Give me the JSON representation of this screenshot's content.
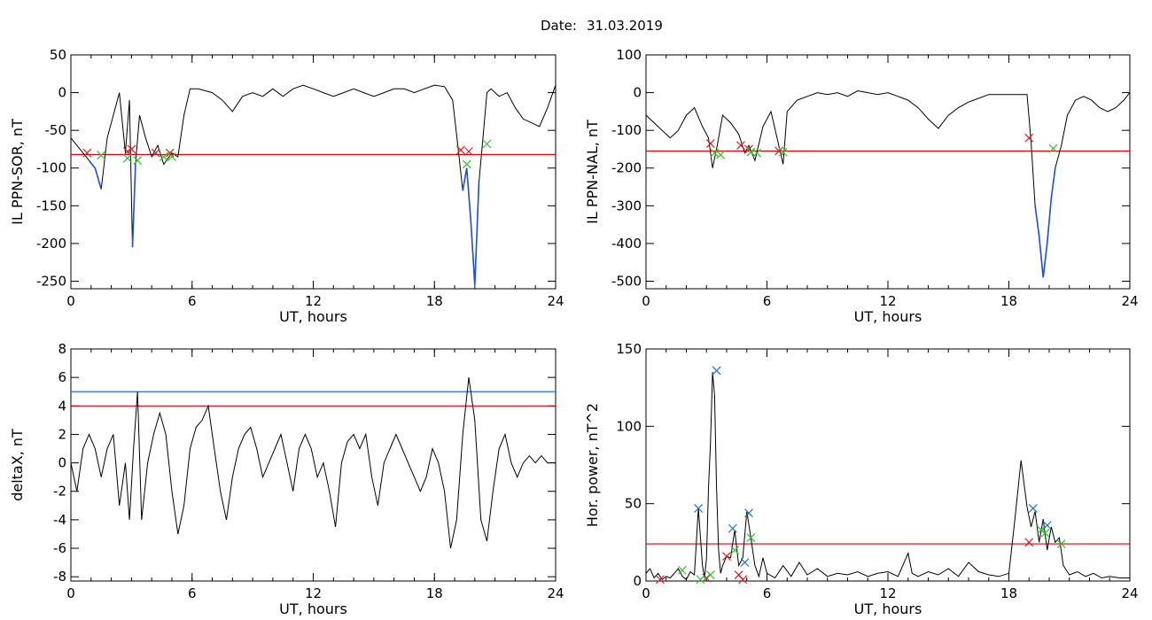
{
  "header": {
    "date_label": "Date:",
    "date_value": "31.03.2019"
  },
  "chart_data": [
    {
      "type": "line",
      "ylabel": "IL PPN-SOR, nT",
      "xlabel": "UT, hours",
      "xlim": [
        0,
        24
      ],
      "ylim": [
        -260,
        50
      ],
      "xticks": [
        0,
        6,
        12,
        18,
        24
      ],
      "yticks": [
        50,
        0,
        -50,
        -100,
        -150,
        -200,
        -250
      ],
      "threshold": -82,
      "threshold_color": "#e00000",
      "trace_color": "#000000",
      "below_color": "#1f4fd8",
      "x": [
        0,
        0.3,
        0.6,
        0.9,
        1.2,
        1.5,
        1.8,
        2.1,
        2.4,
        2.7,
        2.9,
        3.05,
        3.2,
        3.4,
        3.7,
        4.0,
        4.3,
        4.6,
        5.0,
        5.3,
        5.6,
        5.9,
        6.3,
        7.0,
        7.5,
        8.0,
        8.5,
        9.0,
        9.5,
        10.0,
        10.5,
        11.0,
        11.5,
        12.0,
        12.5,
        13.0,
        13.5,
        14.0,
        14.5,
        15.0,
        15.5,
        16.0,
        16.5,
        17.0,
        17.5,
        18.0,
        18.5,
        18.9,
        19.2,
        19.4,
        19.6,
        19.8,
        20.0,
        20.2,
        20.4,
        20.6,
        20.8,
        21.2,
        21.6,
        22.0,
        22.4,
        22.8,
        23.2,
        23.6,
        24.0
      ],
      "y": [
        -60,
        -70,
        -80,
        -90,
        -100,
        -128,
        -60,
        -30,
        0,
        -80,
        -10,
        -205,
        -95,
        -30,
        -60,
        -85,
        -70,
        -95,
        -80,
        -85,
        -30,
        5,
        5,
        0,
        -10,
        -25,
        -5,
        0,
        -5,
        5,
        -5,
        5,
        10,
        5,
        0,
        -5,
        0,
        5,
        0,
        -5,
        0,
        5,
        5,
        0,
        5,
        10,
        8,
        -10,
        -80,
        -130,
        -100,
        -170,
        -255,
        -120,
        -60,
        0,
        5,
        -5,
        0,
        -20,
        -35,
        -40,
        -45,
        -20,
        10
      ],
      "points_red": [
        [
          0.8,
          -80
        ],
        [
          2.8,
          -78
        ],
        [
          3.0,
          -75
        ],
        [
          4.2,
          -80
        ],
        [
          4.9,
          -80
        ],
        [
          19.3,
          -76
        ],
        [
          19.7,
          -78
        ]
      ],
      "points_green": [
        [
          1.5,
          -83
        ],
        [
          2.8,
          -87
        ],
        [
          3.3,
          -90
        ],
        [
          4.6,
          -85
        ],
        [
          5.0,
          -85
        ],
        [
          19.6,
          -95
        ],
        [
          20.6,
          -68
        ]
      ]
    },
    {
      "type": "line",
      "ylabel": "IL PPN-NAL, nT",
      "xlabel": "UT, hours",
      "xlim": [
        0,
        24
      ],
      "ylim": [
        -520,
        100
      ],
      "xticks": [
        0,
        6,
        12,
        18,
        24
      ],
      "yticks": [
        100,
        0,
        -100,
        -200,
        -300,
        -400,
        -500
      ],
      "threshold": -155,
      "threshold_color": "#e00000",
      "trace_color": "#000000",
      "below_color": "#1f4fd8",
      "x": [
        0,
        0.4,
        0.8,
        1.2,
        1.6,
        2.0,
        2.4,
        2.8,
        3.1,
        3.3,
        3.5,
        3.8,
        4.2,
        4.6,
        4.9,
        5.1,
        5.4,
        5.8,
        6.2,
        6.5,
        6.8,
        7.0,
        7.5,
        8.0,
        8.5,
        9.0,
        9.5,
        10.0,
        10.5,
        11.0,
        11.5,
        12.0,
        12.5,
        13.0,
        13.5,
        14.0,
        14.5,
        15.0,
        15.5,
        16.0,
        16.5,
        17.0,
        17.5,
        18.0,
        18.5,
        18.9,
        19.1,
        19.3,
        19.5,
        19.7,
        19.9,
        20.1,
        20.3,
        20.6,
        20.9,
        21.3,
        21.7,
        22.1,
        22.5,
        22.9,
        23.3,
        23.7,
        24.0
      ],
      "y": [
        -60,
        -80,
        -100,
        -120,
        -100,
        -60,
        -40,
        -90,
        -120,
        -200,
        -150,
        -60,
        -80,
        -110,
        -160,
        -140,
        -180,
        -90,
        -50,
        -120,
        -190,
        -50,
        -20,
        -10,
        0,
        -5,
        0,
        -10,
        5,
        0,
        -5,
        0,
        -10,
        -20,
        -40,
        -70,
        -95,
        -60,
        -40,
        -25,
        -15,
        -5,
        -5,
        -5,
        -5,
        -5,
        -130,
        -300,
        -380,
        -490,
        -400,
        -280,
        -200,
        -140,
        -60,
        -20,
        -10,
        -20,
        -40,
        -50,
        -40,
        -20,
        0
      ],
      "points_red": [
        [
          3.2,
          -135
        ],
        [
          4.7,
          -140
        ],
        [
          5.1,
          -150
        ],
        [
          6.6,
          -155
        ],
        [
          19.0,
          -120
        ]
      ],
      "points_green": [
        [
          3.4,
          -160
        ],
        [
          3.7,
          -165
        ],
        [
          5.2,
          -158
        ],
        [
          5.5,
          -160
        ],
        [
          6.8,
          -158
        ],
        [
          20.2,
          -148
        ]
      ]
    },
    {
      "type": "line",
      "ylabel": "deltaX, nT",
      "xlabel": "UT, hours",
      "xlim": [
        0,
        24
      ],
      "ylim": [
        -8.3,
        8
      ],
      "xticks": [
        0,
        6,
        12,
        18,
        24
      ],
      "yticks": [
        8,
        6,
        4,
        2,
        0,
        -2,
        -4,
        -6,
        -8
      ],
      "thresholds": [
        {
          "value": 5,
          "color": "#1f6fd0"
        },
        {
          "value": 4,
          "color": "#e00000"
        }
      ],
      "trace_color": "#000000",
      "x": [
        0,
        0.3,
        0.6,
        0.9,
        1.2,
        1.5,
        1.8,
        2.1,
        2.4,
        2.7,
        2.9,
        3.1,
        3.3,
        3.5,
        3.8,
        4.1,
        4.4,
        4.7,
        5.0,
        5.3,
        5.6,
        5.9,
        6.2,
        6.5,
        6.8,
        7.1,
        7.4,
        7.7,
        8.0,
        8.3,
        8.6,
        8.9,
        9.2,
        9.5,
        9.8,
        10.1,
        10.4,
        10.7,
        11.0,
        11.3,
        11.6,
        11.9,
        12.2,
        12.5,
        12.8,
        13.1,
        13.4,
        13.7,
        14.0,
        14.3,
        14.6,
        14.9,
        15.2,
        15.5,
        15.8,
        16.1,
        16.4,
        16.7,
        17.0,
        17.3,
        17.6,
        17.9,
        18.2,
        18.5,
        18.8,
        19.1,
        19.4,
        19.7,
        20.0,
        20.3,
        20.6,
        20.9,
        21.2,
        21.5,
        21.8,
        22.1,
        22.4,
        22.7,
        23.0,
        23.3,
        23.6,
        24.0
      ],
      "y": [
        0,
        -2,
        1,
        2,
        1,
        -1,
        1,
        2,
        -3,
        0,
        -4,
        1,
        5,
        -4,
        0,
        2,
        3.5,
        2,
        -2,
        -5,
        -3,
        1,
        2.5,
        3,
        4,
        1,
        -2,
        -4,
        -1,
        1,
        2,
        2.5,
        1,
        -1,
        0,
        1,
        2,
        0,
        -2,
        1,
        2,
        1,
        -1,
        0,
        -2,
        -4.5,
        0,
        1.5,
        2,
        1,
        2,
        -1,
        -3,
        0,
        1,
        2,
        1,
        0,
        -1,
        -2,
        -1,
        1,
        0,
        -2,
        -6,
        -4,
        2,
        6,
        3,
        -4,
        -5.5,
        -2,
        1,
        2,
        0,
        -1,
        0,
        0.5,
        0,
        0.5,
        0,
        0
      ]
    },
    {
      "type": "line",
      "ylabel": "Hor. power, nT^2",
      "xlabel": "UT, hours",
      "xlim": [
        0,
        24
      ],
      "ylim": [
        0,
        150
      ],
      "xticks": [
        0,
        6,
        12,
        18,
        24
      ],
      "yticks": [
        150,
        100,
        50,
        0
      ],
      "threshold": 24,
      "threshold_color": "#e00000",
      "trace_color": "#000000",
      "x": [
        0,
        0.2,
        0.4,
        0.6,
        0.8,
        1.0,
        1.2,
        1.4,
        1.6,
        1.8,
        2.0,
        2.2,
        2.4,
        2.6,
        2.8,
        2.9,
        3.0,
        3.1,
        3.2,
        3.3,
        3.4,
        3.5,
        3.6,
        3.7,
        3.8,
        4.0,
        4.2,
        4.4,
        4.6,
        4.8,
        5.0,
        5.2,
        5.4,
        5.6,
        5.8,
        6.0,
        6.4,
        6.8,
        7.2,
        7.6,
        8.0,
        8.5,
        9.0,
        9.5,
        10.0,
        10.5,
        11.0,
        11.5,
        12.0,
        12.5,
        13.0,
        13.2,
        13.5,
        14.0,
        14.5,
        15.0,
        15.5,
        16.0,
        16.5,
        17.0,
        17.5,
        18.0,
        18.3,
        18.6,
        18.9,
        19.1,
        19.3,
        19.5,
        19.7,
        19.9,
        20.1,
        20.3,
        20.5,
        20.7,
        21.0,
        21.4,
        21.8,
        22.2,
        22.6,
        23.0,
        23.5,
        24.0
      ],
      "y": [
        5,
        8,
        2,
        5,
        1,
        3,
        2,
        5,
        8,
        3,
        1,
        6,
        4,
        47,
        10,
        2,
        15,
        60,
        90,
        135,
        120,
        60,
        20,
        5,
        10,
        16,
        15,
        33,
        10,
        15,
        45,
        28,
        10,
        3,
        15,
        5,
        2,
        10,
        3,
        12,
        4,
        8,
        3,
        5,
        4,
        6,
        3,
        5,
        6,
        3,
        18,
        5,
        3,
        6,
        4,
        8,
        3,
        12,
        6,
        4,
        3,
        5,
        40,
        78,
        48,
        35,
        45,
        25,
        40,
        20,
        35,
        25,
        28,
        10,
        4,
        6,
        3,
        5,
        2,
        3,
        2,
        2
      ],
      "points_blue": [
        [
          2.6,
          47
        ],
        [
          3.5,
          136
        ],
        [
          4.3,
          34
        ],
        [
          4.9,
          12
        ],
        [
          5.1,
          44
        ],
        [
          19.2,
          47
        ],
        [
          19.9,
          36
        ]
      ],
      "points_green": [
        [
          1.8,
          7
        ],
        [
          2.7,
          1
        ],
        [
          3.2,
          4
        ],
        [
          4.4,
          20
        ],
        [
          5.2,
          28
        ],
        [
          19.6,
          33
        ],
        [
          19.8,
          31
        ],
        [
          20.6,
          24
        ]
      ],
      "points_red": [
        [
          0.7,
          1
        ],
        [
          3.0,
          2
        ],
        [
          4.0,
          16
        ],
        [
          4.6,
          4
        ],
        [
          4.8,
          1
        ],
        [
          19.0,
          25
        ]
      ]
    }
  ]
}
